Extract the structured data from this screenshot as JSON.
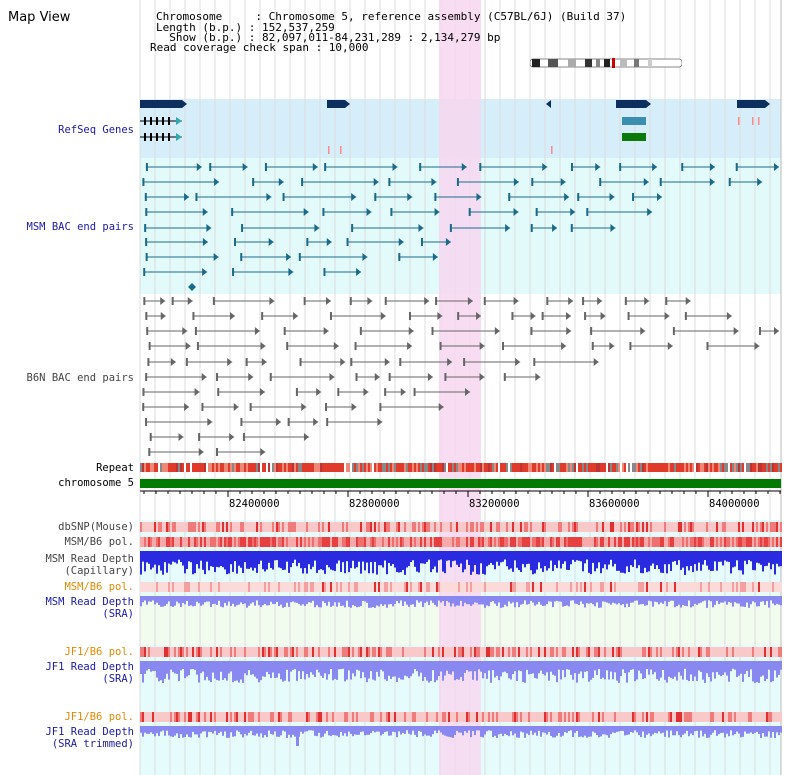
{
  "app": {
    "title": "Map View"
  },
  "info": {
    "chromosome_line": "Chromosome     : Chromosome 5, reference assembly (C57BL/6J) (Build 37)",
    "length_line": "Length (b.p.) : 152,537,259",
    "show_line": "  Show (b.p.) : 82,097,011-84,231,289 : 2,134,279 bp",
    "coverage_line": "Read coverage check span : 10,000"
  },
  "tracks": {
    "refseq": "RefSeq Genes",
    "msm_bac": "MSM BAC end pairs",
    "b6n_bac": "B6N BAC end pairs",
    "repeat": "Repeat",
    "chromosome": "chromosome 5",
    "dbsnp": "dbSNP(Mouse)",
    "msm_b6_pol_1": "MSM/B6 pol.",
    "msm_read_depth_cap_1": "MSM Read Depth",
    "msm_read_depth_cap_2": "(Capillary)",
    "msm_b6_pol_2": "MSM/B6 pol.",
    "msm_read_depth_sra_1": "MSM Read Depth",
    "msm_read_depth_sra_2": "(SRA)",
    "jf1_b6_pol_1": "JF1/B6 pol.",
    "jf1_read_depth_sra_1": "JF1 Read Depth",
    "jf1_read_depth_sra_2": "(SRA)",
    "jf1_b6_pol_2": "JF1/B6 pol.",
    "jf1_read_depth_trim_1": "JF1 Read Depth",
    "jf1_read_depth_trim_2": "(SRA trimmed)"
  },
  "axis": {
    "ticks": [
      "82400000",
      "82800000",
      "83200000",
      "83600000",
      "84000000"
    ]
  },
  "colors": {
    "refseq_bg": "#d6eef9",
    "msm_bac_bg": "#e2fafa",
    "b6n_bg": "#f0f0f0",
    "highlight": "#f7d7f0",
    "lower_bg": "#e6fbfb",
    "gene_dark": "#0d2f5e",
    "gene_mid": "#3a8fb0",
    "gene_green": "#0b7a0b",
    "msm_bac": "#1c6a8a",
    "b6n_bac": "#666666",
    "chrom_bar": "#007a00",
    "depth_blue": "#2a2ae0",
    "depth_lavender": "#8888f0"
  }
}
